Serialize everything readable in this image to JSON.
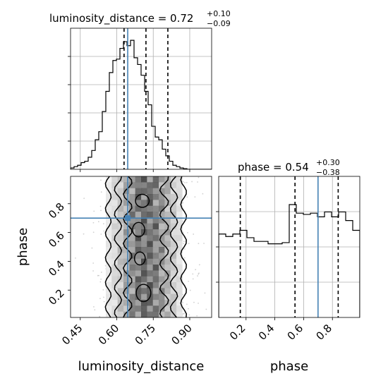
{
  "chart_data": {
    "type": "corner",
    "truth_color": "#4682b4",
    "parameters": [
      {
        "name": "luminosity_distance",
        "range": [
          0.41,
          0.99
        ]
      },
      {
        "name": "phase",
        "range": [
          0.01,
          0.99
        ]
      }
    ],
    "marginal_luminosity_distance": {
      "title": {
        "prefix": "luminosity_distance = ",
        "value": "0.72",
        "upper": "+0.10",
        "lower": "−0.09"
      },
      "quantiles": [
        0.63,
        0.72,
        0.81
      ],
      "truth": 0.645,
      "bins": [
        0.41,
        0.4245,
        0.439,
        0.4535,
        0.468,
        0.4825,
        0.497,
        0.5115,
        0.526,
        0.5405,
        0.555,
        0.5695,
        0.584,
        0.5985,
        0.613,
        0.6275,
        0.642,
        0.6565,
        0.671,
        0.6855,
        0.7,
        0.7145,
        0.729,
        0.7435,
        0.758,
        0.7725,
        0.787,
        0.8015,
        0.816,
        0.8305,
        0.845,
        0.8595,
        0.874,
        0.8885,
        0.903,
        0.9175,
        0.932,
        0.9465,
        0.961,
        0.9755,
        0.99
      ],
      "counts": [
        0.01,
        0.02,
        0.03,
        0.05,
        0.06,
        0.09,
        0.14,
        0.22,
        0.28,
        0.43,
        0.58,
        0.72,
        0.81,
        0.82,
        0.9,
        0.95,
        0.92,
        0.96,
        0.83,
        0.78,
        0.7,
        0.58,
        0.48,
        0.32,
        0.24,
        0.22,
        0.15,
        0.1,
        0.06,
        0.03,
        0.02,
        0.01,
        0.005,
        0.0,
        0.0,
        0.0,
        0.0,
        0.0,
        0.0,
        0.0
      ],
      "ticks": [
        0.45,
        0.6,
        0.75,
        0.9
      ]
    },
    "marginal_phase": {
      "title": {
        "prefix": "phase = ",
        "value": "0.54",
        "upper": "+0.30",
        "lower": "−0.38"
      },
      "quantiles": [
        0.16,
        0.54,
        0.84
      ],
      "truth": 0.7,
      "bins": [
        0.01,
        0.059,
        0.108,
        0.157,
        0.206,
        0.255,
        0.304,
        0.353,
        0.402,
        0.451,
        0.5,
        0.549,
        0.598,
        0.647,
        0.696,
        0.745,
        0.794,
        0.843,
        0.892,
        0.941,
        0.99
      ],
      "counts": [
        0.68,
        0.66,
        0.68,
        0.71,
        0.65,
        0.62,
        0.62,
        0.6,
        0.6,
        0.61,
        0.92,
        0.85,
        0.84,
        0.85,
        0.82,
        0.86,
        0.82,
        0.86,
        0.79,
        0.71
      ],
      "ticks": [
        0.2,
        0.4,
        0.6,
        0.8
      ]
    },
    "joint": {
      "x": "luminosity_distance",
      "y": "phase",
      "truth": [
        0.645,
        0.7
      ],
      "xticks": [
        0.45,
        0.6,
        0.75,
        0.9
      ],
      "yticks": [
        0.2,
        0.4,
        0.6,
        0.8
      ]
    }
  },
  "axis_labels": {
    "x_left": "luminosity_distance",
    "x_right": "phase",
    "y": "phase"
  }
}
